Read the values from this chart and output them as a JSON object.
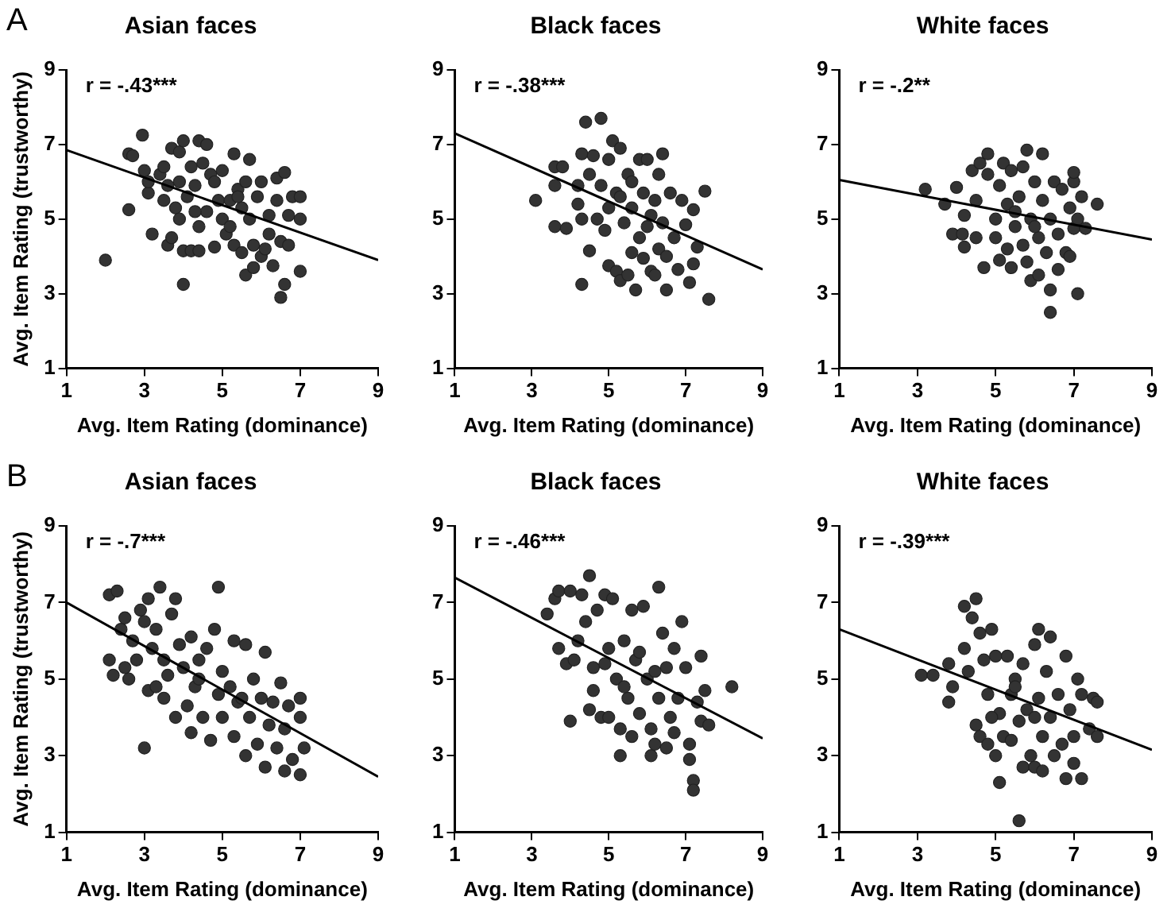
{
  "chart_data": [
    {
      "type": "scatter",
      "title": "Asian faces",
      "xlabel": "Avg. Item Rating (dominance)",
      "ylabel": "Avg. Item Rating (trustworthy)",
      "xlim": [
        1,
        9
      ],
      "ylim": [
        1,
        9
      ],
      "xticks": [
        1,
        3,
        5,
        7,
        9
      ],
      "yticks": [
        1,
        3,
        5,
        7,
        9
      ],
      "grid": false,
      "legend": false,
      "marker": "circle",
      "annotations": [
        "r = -.43***",
        "A"
      ],
      "series": [
        {
          "type": "scatter",
          "color": "#333333",
          "x": [
            2.0,
            2.6,
            2.6,
            2.7,
            2.95,
            3.0,
            3.1,
            3.1,
            3.2,
            3.4,
            3.5,
            3.5,
            3.6,
            3.7,
            3.7,
            3.8,
            3.9,
            3.9,
            3.9,
            4.0,
            4.0,
            4.0,
            4.1,
            4.2,
            4.2,
            4.3,
            4.4,
            4.4,
            4.4,
            4.5,
            4.6,
            4.6,
            4.7,
            4.8,
            4.8,
            4.9,
            5.0,
            5.0,
            5.1,
            5.2,
            5.3,
            5.3,
            5.4,
            5.5,
            5.5,
            5.6,
            5.6,
            5.7,
            5.7,
            5.8,
            5.8,
            5.9,
            6.0,
            6.0,
            6.1,
            6.2,
            6.3,
            6.4,
            6.4,
            6.5,
            6.5,
            6.6,
            6.6,
            6.7,
            6.7,
            6.8,
            7.0,
            7.0,
            7.0,
            5.4,
            5.2,
            6.2,
            4.3,
            3.6
          ],
          "values": [
            3.9,
            5.25,
            6.75,
            6.7,
            7.25,
            6.3,
            5.7,
            6.0,
            4.6,
            6.2,
            6.4,
            5.5,
            4.3,
            4.5,
            6.9,
            5.3,
            6.8,
            6.0,
            5.0,
            4.15,
            3.25,
            7.1,
            5.6,
            4.15,
            6.4,
            5.9,
            4.8,
            4.15,
            7.1,
            6.5,
            5.2,
            7.0,
            6.2,
            4.25,
            6.0,
            5.5,
            5.0,
            6.3,
            4.6,
            5.5,
            4.3,
            6.75,
            5.8,
            4.1,
            5.3,
            6.0,
            3.5,
            5.0,
            6.6,
            4.3,
            3.7,
            5.6,
            4.0,
            6.0,
            4.2,
            5.1,
            3.75,
            5.5,
            6.1,
            4.4,
            2.9,
            3.25,
            6.25,
            4.3,
            5.1,
            5.6,
            5.6,
            5.0,
            3.6,
            5.6,
            4.8,
            4.6,
            5.2,
            5.9
          ]
        },
        {
          "type": "line",
          "color": "#000000",
          "x": [
            1,
            9
          ],
          "values": [
            6.85,
            3.9
          ],
          "marker": "none"
        }
      ]
    },
    {
      "type": "scatter",
      "title": "Black faces",
      "xlabel": "Avg. Item Rating (dominance)",
      "xlim": [
        1,
        9
      ],
      "ylim": [
        1,
        9
      ],
      "xticks": [
        1,
        3,
        5,
        7,
        9
      ],
      "yticks": [
        1,
        3,
        5,
        7,
        9
      ],
      "grid": false,
      "legend": false,
      "marker": "circle",
      "annotations": [
        "r = -.38***"
      ],
      "series": [
        {
          "type": "scatter",
          "color": "#333333",
          "x": [
            3.1,
            3.6,
            3.6,
            3.6,
            3.8,
            3.9,
            4.2,
            4.2,
            4.3,
            4.3,
            4.3,
            4.4,
            4.5,
            4.5,
            4.6,
            4.8,
            4.8,
            4.9,
            5.0,
            5.0,
            5.0,
            5.1,
            5.2,
            5.2,
            5.3,
            5.3,
            5.4,
            5.5,
            5.5,
            5.6,
            5.6,
            5.7,
            5.8,
            5.8,
            5.9,
            5.9,
            6.0,
            6.0,
            6.1,
            6.2,
            6.2,
            6.3,
            6.3,
            6.4,
            6.4,
            6.5,
            6.5,
            6.6,
            6.7,
            6.8,
            6.9,
            7.1,
            7.2,
            7.2,
            7.3,
            7.5,
            7.6,
            7.0,
            6.1,
            5.3,
            4.7,
            5.6
          ],
          "values": [
            5.5,
            4.8,
            5.9,
            6.4,
            6.4,
            4.75,
            5.4,
            5.9,
            3.25,
            5.0,
            6.75,
            7.6,
            6.2,
            4.15,
            6.7,
            7.7,
            5.9,
            4.7,
            5.3,
            6.6,
            3.75,
            7.1,
            3.6,
            5.7,
            3.35,
            6.9,
            4.9,
            6.2,
            3.5,
            5.3,
            4.1,
            3.1,
            6.6,
            4.5,
            5.7,
            3.95,
            4.8,
            6.6,
            3.6,
            5.5,
            3.5,
            4.2,
            6.2,
            6.75,
            4.9,
            3.1,
            4.0,
            5.7,
            4.5,
            3.65,
            5.5,
            3.3,
            3.8,
            5.25,
            4.25,
            5.75,
            2.85,
            4.85,
            5.1,
            5.6,
            5.0,
            6.0
          ]
        },
        {
          "type": "line",
          "color": "#000000",
          "x": [
            1,
            9
          ],
          "values": [
            7.3,
            3.65
          ],
          "marker": "none"
        }
      ]
    },
    {
      "type": "scatter",
      "title": "White faces",
      "xlabel": "Avg. Item Rating (dominance)",
      "xlim": [
        1,
        9
      ],
      "ylim": [
        1,
        9
      ],
      "xticks": [
        1,
        3,
        5,
        7,
        9
      ],
      "yticks": [
        1,
        3,
        5,
        7,
        9
      ],
      "grid": false,
      "legend": false,
      "marker": "circle",
      "annotations": [
        "r = -.2**"
      ],
      "series": [
        {
          "type": "scatter",
          "color": "#333333",
          "x": [
            3.2,
            3.7,
            4.0,
            3.9,
            4.15,
            4.2,
            4.2,
            4.4,
            4.5,
            4.5,
            4.6,
            4.7,
            4.8,
            4.8,
            5.0,
            5.0,
            5.1,
            5.1,
            5.2,
            5.3,
            5.3,
            5.4,
            5.4,
            5.5,
            5.6,
            5.7,
            5.8,
            5.8,
            5.9,
            5.9,
            6.0,
            6.1,
            6.1,
            6.2,
            6.2,
            6.3,
            6.4,
            6.4,
            6.4,
            6.5,
            6.6,
            6.6,
            6.7,
            6.8,
            6.9,
            6.9,
            7.0,
            7.0,
            7.0,
            7.1,
            7.1,
            7.2,
            7.3,
            7.6,
            5.5,
            6.0,
            5.7
          ],
          "values": [
            5.8,
            5.4,
            5.85,
            4.6,
            4.6,
            5.1,
            4.25,
            6.3,
            5.5,
            4.5,
            6.5,
            3.7,
            6.2,
            6.75,
            5.0,
            4.5,
            5.9,
            3.9,
            6.5,
            4.2,
            5.4,
            3.7,
            6.3,
            4.8,
            5.6,
            6.4,
            6.85,
            3.85,
            3.35,
            5.0,
            6.0,
            3.5,
            4.5,
            5.5,
            6.75,
            4.1,
            3.1,
            2.5,
            5.0,
            6.0,
            3.65,
            4.6,
            5.8,
            4.1,
            4.0,
            5.3,
            6.0,
            4.75,
            6.25,
            5.0,
            3.0,
            5.6,
            4.75,
            5.4,
            5.2,
            4.8,
            4.3
          ]
        },
        {
          "type": "line",
          "color": "#000000",
          "x": [
            1,
            9
          ],
          "values": [
            6.05,
            4.45
          ],
          "marker": "none"
        }
      ]
    },
    {
      "type": "scatter",
      "title": "Asian faces",
      "xlabel": "Avg. Item Rating (dominance)",
      "ylabel": "Avg. Item Rating (trustworthy)",
      "xlim": [
        1,
        9
      ],
      "ylim": [
        1,
        9
      ],
      "xticks": [
        1,
        3,
        5,
        7,
        9
      ],
      "yticks": [
        1,
        3,
        5,
        7,
        9
      ],
      "grid": false,
      "legend": false,
      "marker": "circle",
      "annotations": [
        "r = -.7***",
        "B"
      ],
      "series": [
        {
          "type": "scatter",
          "color": "#333333",
          "x": [
            2.1,
            2.1,
            2.2,
            2.3,
            2.4,
            2.5,
            2.5,
            2.6,
            2.7,
            2.8,
            2.9,
            3.0,
            3.0,
            3.1,
            3.1,
            3.2,
            3.3,
            3.3,
            3.4,
            3.5,
            3.5,
            3.7,
            3.8,
            3.8,
            3.9,
            4.0,
            4.1,
            4.2,
            4.2,
            4.3,
            4.4,
            4.5,
            4.6,
            4.7,
            4.8,
            4.9,
            4.9,
            5.0,
            5.0,
            5.2,
            5.3,
            5.3,
            5.4,
            5.6,
            5.6,
            5.7,
            5.8,
            5.9,
            6.0,
            6.1,
            6.1,
            6.2,
            6.3,
            6.4,
            6.5,
            6.6,
            6.6,
            6.7,
            6.8,
            7.0,
            7.0,
            7.0,
            7.1,
            5.5,
            4.4,
            3.6
          ],
          "values": [
            7.2,
            5.5,
            5.1,
            7.3,
            6.3,
            5.3,
            6.6,
            5.0,
            6.0,
            5.5,
            6.8,
            3.2,
            6.5,
            7.1,
            4.7,
            5.8,
            6.3,
            4.8,
            7.4,
            5.5,
            4.5,
            6.7,
            4.0,
            7.1,
            5.9,
            5.3,
            4.3,
            3.6,
            6.1,
            4.8,
            5.5,
            4.0,
            5.8,
            3.4,
            6.3,
            7.4,
            4.6,
            5.2,
            4.0,
            4.8,
            3.5,
            6.0,
            4.4,
            3.0,
            5.9,
            4.0,
            5.0,
            3.3,
            4.5,
            5.7,
            2.7,
            3.8,
            4.4,
            3.2,
            4.9,
            3.7,
            2.6,
            4.3,
            2.9,
            2.5,
            4.5,
            4.0,
            3.2,
            4.5,
            5.0,
            5.1
          ]
        },
        {
          "type": "line",
          "color": "#000000",
          "x": [
            1,
            9
          ],
          "values": [
            7.0,
            2.45
          ],
          "marker": "none"
        }
      ]
    },
    {
      "type": "scatter",
      "title": "Black faces",
      "xlabel": "Avg. Item Rating (dominance)",
      "xlim": [
        1,
        9
      ],
      "ylim": [
        1,
        9
      ],
      "xticks": [
        1,
        3,
        5,
        7,
        9
      ],
      "yticks": [
        1,
        3,
        5,
        7,
        9
      ],
      "grid": false,
      "legend": false,
      "marker": "circle",
      "annotations": [
        "r = -.46***"
      ],
      "series": [
        {
          "type": "scatter",
          "color": "#333333",
          "x": [
            3.4,
            3.6,
            3.7,
            3.7,
            3.9,
            4.0,
            4.0,
            4.1,
            4.2,
            4.3,
            4.4,
            4.5,
            4.5,
            4.6,
            4.6,
            4.7,
            4.8,
            4.9,
            5.0,
            5.0,
            5.1,
            5.2,
            5.3,
            5.3,
            5.4,
            5.5,
            5.6,
            5.6,
            5.7,
            5.8,
            5.9,
            6.0,
            6.1,
            6.1,
            6.2,
            6.3,
            6.3,
            6.4,
            6.5,
            6.5,
            6.6,
            6.7,
            6.7,
            6.8,
            6.9,
            7.0,
            7.1,
            7.1,
            7.2,
            7.2,
            7.3,
            7.4,
            7.4,
            7.5,
            7.6,
            8.2,
            5.8,
            6.2,
            5.4,
            4.9
          ],
          "values": [
            6.7,
            7.1,
            7.3,
            5.8,
            5.4,
            3.9,
            7.3,
            5.5,
            6.0,
            7.2,
            6.5,
            7.7,
            4.2,
            5.3,
            4.7,
            6.8,
            4.0,
            7.2,
            5.8,
            4.0,
            7.1,
            5.0,
            3.0,
            3.7,
            6.0,
            4.5,
            3.5,
            6.8,
            5.5,
            4.1,
            6.9,
            5.0,
            3.7,
            3.0,
            3.3,
            7.4,
            4.5,
            6.2,
            3.2,
            5.3,
            4.0,
            3.6,
            5.8,
            4.5,
            6.5,
            5.3,
            2.9,
            3.3,
            2.35,
            2.1,
            4.4,
            5.6,
            3.9,
            4.7,
            3.8,
            4.8,
            5.7,
            5.2,
            4.8,
            5.4
          ]
        },
        {
          "type": "line",
          "color": "#000000",
          "x": [
            1,
            9
          ],
          "values": [
            7.65,
            3.45
          ],
          "marker": "none"
        }
      ]
    },
    {
      "type": "scatter",
      "title": "White faces",
      "xlabel": "Avg. Item Rating (dominance)",
      "xlim": [
        1,
        9
      ],
      "ylim": [
        1,
        9
      ],
      "xticks": [
        1,
        3,
        5,
        7,
        9
      ],
      "yticks": [
        1,
        3,
        5,
        7,
        9
      ],
      "grid": false,
      "legend": false,
      "marker": "circle",
      "annotations": [
        "r = -.39***"
      ],
      "series": [
        {
          "type": "scatter",
          "color": "#333333",
          "x": [
            3.1,
            3.4,
            3.8,
            3.8,
            3.9,
            4.2,
            4.2,
            4.3,
            4.4,
            4.5,
            4.5,
            4.6,
            4.6,
            4.7,
            4.8,
            4.8,
            4.9,
            5.0,
            5.0,
            5.1,
            5.1,
            5.2,
            5.3,
            5.4,
            5.4,
            5.5,
            5.6,
            5.6,
            5.7,
            5.7,
            5.8,
            5.9,
            6.0,
            6.0,
            6.1,
            6.1,
            6.2,
            6.2,
            6.3,
            6.4,
            6.4,
            6.5,
            6.6,
            6.7,
            6.8,
            6.8,
            6.9,
            7.0,
            7.0,
            7.1,
            7.2,
            7.2,
            7.4,
            7.5,
            7.6,
            7.6,
            5.5,
            6.0,
            4.9
          ],
          "values": [
            5.1,
            5.1,
            4.4,
            5.4,
            4.8,
            6.9,
            5.8,
            5.2,
            6.6,
            7.1,
            3.8,
            6.2,
            3.5,
            5.5,
            4.6,
            3.3,
            6.3,
            3.0,
            5.6,
            2.3,
            4.1,
            3.5,
            5.6,
            4.6,
            3.4,
            5.0,
            1.3,
            3.9,
            2.7,
            5.4,
            4.2,
            3.0,
            5.9,
            2.7,
            6.3,
            4.5,
            2.6,
            3.5,
            5.2,
            6.1,
            4.0,
            3.0,
            4.6,
            3.3,
            2.4,
            5.6,
            4.2,
            2.8,
            3.5,
            5.0,
            2.4,
            4.6,
            3.7,
            4.5,
            3.5,
            4.4,
            4.8,
            4.0,
            4.0
          ]
        },
        {
          "type": "line",
          "color": "#000000",
          "x": [
            1,
            9
          ],
          "values": [
            6.3,
            3.15
          ],
          "marker": "none"
        }
      ]
    }
  ]
}
